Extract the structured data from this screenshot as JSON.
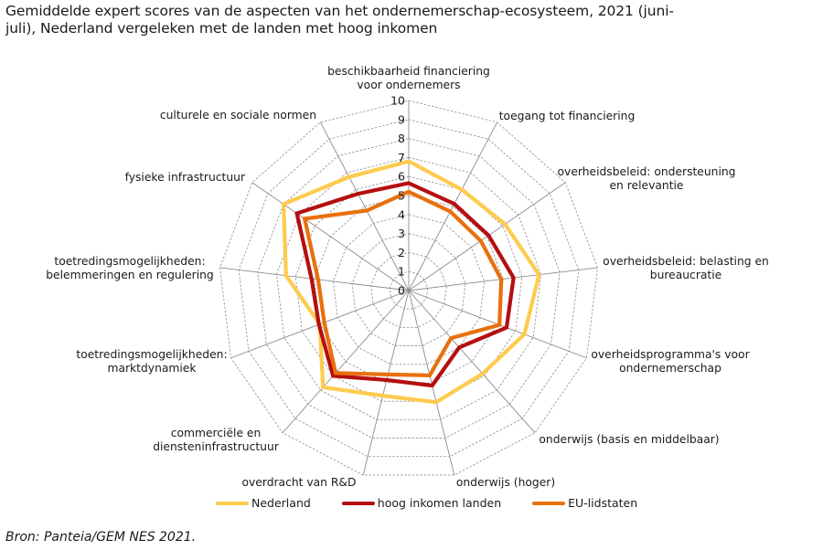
{
  "title_lines": [
    "Gemiddelde expert scores van de aspecten van het ondernemerschap-ecosysteem, 2021 (juni-",
    "juli), Nederland vergeleken met de landen met hoog inkomen"
  ],
  "source": "Bron: Panteia/GEM NES 2021.",
  "chart_data": {
    "type": "radar",
    "title": "Gemiddelde expert scores van de aspecten van het ondernemerschap-ecosysteem, 2021 (juni-juli), Nederland vergeleken met de landen met hoog inkomen",
    "categories": [
      [
        "beschikbaarheid financiering",
        "voor ondernemers"
      ],
      [
        "toegang tot financiering"
      ],
      [
        "overheidsbeleid: ondersteuning",
        "en relevantie"
      ],
      [
        "overheidsbeleid: belasting en",
        "bureaucratie"
      ],
      [
        "overheidsprogramma's voor",
        "ondernemerschap"
      ],
      [
        "onderwijs (basis en middelbaar)"
      ],
      [
        "onderwijs (hoger)"
      ],
      [
        "overdracht van R&D"
      ],
      [
        "commerciële en",
        "diensteninfrastructuur"
      ],
      [
        "toetredingsmogelijkheden:",
        "marktdynamiek"
      ],
      [
        "toetredingsmogelijkheden:",
        "belemmeringen en regulering"
      ],
      [
        "fysieke infrastructuur"
      ],
      [
        "culturele en sociale normen"
      ]
    ],
    "radial_ticks": [
      "0",
      "1",
      "2",
      "3",
      "4",
      "5",
      "6",
      "7",
      "8",
      "9",
      "10"
    ],
    "range": [
      0,
      10
    ],
    "grid": true,
    "legend_position": "bottom",
    "series": [
      {
        "name": "Nederland",
        "color": "#FDCB4E",
        "values": [
          6.8,
          6.0,
          6.15,
          6.9,
          6.5,
          5.85,
          6.05,
          5.7,
          6.8,
          5.0,
          6.5,
          8.0,
          6.75
        ]
      },
      {
        "name": "hoog inkomen landen",
        "color": "#B50E0E",
        "values": [
          5.65,
          5.15,
          5.1,
          5.55,
          5.5,
          4.0,
          5.15,
          4.85,
          6.0,
          5.05,
          5.15,
          7.15,
          5.75
        ]
      },
      {
        "name": "EU-lidstaten",
        "color": "#E8700E",
        "values": [
          5.2,
          4.7,
          4.6,
          4.9,
          5.1,
          3.35,
          4.6,
          4.55,
          5.8,
          4.75,
          4.8,
          6.65,
          4.75
        ]
      }
    ]
  }
}
